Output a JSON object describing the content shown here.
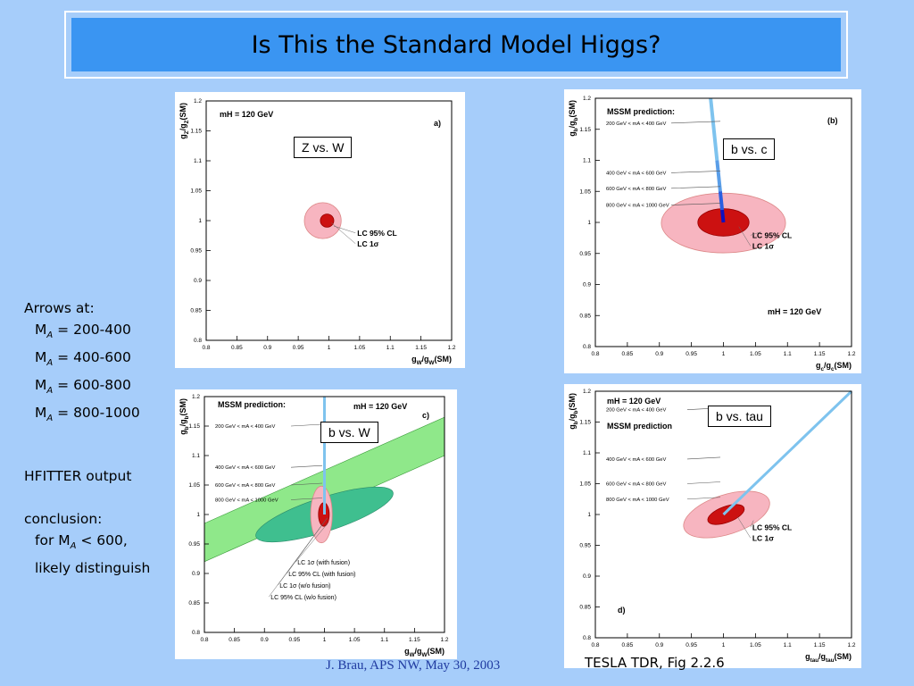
{
  "slide": {
    "title": "Is This the Standard Model Higgs?",
    "notes": {
      "arrows_header": "Arrows at:",
      "arrows": [
        "200-400",
        "400-600",
        "600-800",
        "800-1000"
      ],
      "arrow_prefix": "M",
      "arrow_sub": "A",
      "hfitter": "HFITTER output",
      "conclusion_label": "conclusion:",
      "conclusion_line1_pre": "for M",
      "conclusion_line1_sub": "A",
      "conclusion_line1_post": " < 600,",
      "conclusion_line2": "likely distinguish"
    },
    "footer_left": "J. Brau, APS NW, May 30, 2003",
    "footer_right": "TESLA TDR, Fig 2.2.6"
  },
  "chart_data": [
    {
      "id": "a",
      "type": "scatter",
      "callout": "Z vs. W",
      "panel_tag": "a)",
      "xlabel": "g_W/g_W(SM)",
      "ylabel": "g_Z/g_Z(SM)",
      "xlim": [
        0.8,
        1.2
      ],
      "ylim": [
        0.8,
        1.2
      ],
      "xticks": [
        "0.8",
        "0.85",
        "0.9",
        "0.95",
        "1",
        "1.05",
        "1.1",
        "1.15",
        "1.2"
      ],
      "yticks": [
        "0.8",
        "0.85",
        "0.9",
        "0.95",
        "1",
        "1.05",
        "1.1",
        "1.15",
        "1.2"
      ],
      "annotations": [
        {
          "text": "m_H = 120 GeV"
        }
      ],
      "ellipses": [
        {
          "name": "LC 95% CL",
          "cx": 0.99,
          "cy": 1.0,
          "rx": 0.03,
          "ry": 0.03,
          "color": "#f7b5c0"
        },
        {
          "name": "LC 1σ",
          "cx": 0.997,
          "cy": 1.0,
          "rx": 0.011,
          "ry": 0.011,
          "color": "#cc1111"
        }
      ],
      "legend_labels": [
        "LC 95% CL",
        "LC 1σ"
      ],
      "mssm_points": []
    },
    {
      "id": "b",
      "type": "scatter",
      "callout": "b vs. c",
      "panel_tag": "(b)",
      "xlabel": "g_c/g_c(SM)",
      "ylabel": "g_b/g_b(SM)",
      "xlim": [
        0.8,
        1.2
      ],
      "ylim": [
        0.8,
        1.2
      ],
      "xticks": [
        "0.8",
        "0.85",
        "0.9",
        "0.95",
        "1",
        "1.05",
        "1.1",
        "1.15",
        "1.2"
      ],
      "yticks": [
        "0.8",
        "0.85",
        "0.9",
        "0.95",
        "1",
        "1.05",
        "1.1",
        "1.15",
        "1.2"
      ],
      "annotations": [
        {
          "text": "MSSM prediction:"
        },
        {
          "text": "m_H = 120 GeV"
        }
      ],
      "ellipses": [
        {
          "name": "LC 95% CL",
          "cx": 1.0,
          "cy": 0.999,
          "rx": 0.097,
          "ry": 0.048,
          "color": "#f7b5c0"
        },
        {
          "name": "LC 1σ",
          "cx": 1.0,
          "cy": 1.0,
          "rx": 0.04,
          "ry": 0.022,
          "color": "#cc1111"
        }
      ],
      "legend_labels": [
        "LC 95% CL",
        "LC 1σ"
      ],
      "mssm_ranges": [
        {
          "label": "200 GeV < m_A < 400 GeV",
          "y_arrow": 1.16
        },
        {
          "label": "400 GeV < m_A < 600 GeV",
          "y_arrow": 1.08
        },
        {
          "label": "600 GeV < m_A < 800 GeV",
          "y_arrow": 1.055
        },
        {
          "label": "800 GeV < m_A < 1000 GeV",
          "y_arrow": 1.028
        }
      ],
      "mssm_line": [
        [
          0.98,
          1.2
        ],
        [
          0.99,
          1.1
        ],
        [
          0.995,
          1.05
        ],
        [
          0.998,
          1.02
        ],
        [
          1.0,
          1.0
        ]
      ]
    },
    {
      "id": "c",
      "type": "scatter",
      "callout": "b vs. W",
      "panel_tag": "c)",
      "xlabel": "g_W/g_W(SM)",
      "ylabel": "g_b/g_b(SM)",
      "xlim": [
        0.8,
        1.2
      ],
      "ylim": [
        0.8,
        1.2
      ],
      "xticks": [
        "0.8",
        "0.85",
        "0.9",
        "0.95",
        "1",
        "1.05",
        "1.1",
        "1.15",
        "1.2"
      ],
      "yticks": [
        "0.8",
        "0.85",
        "0.9",
        "0.95",
        "1",
        "1.05",
        "1.1",
        "1.15",
        "1.2"
      ],
      "annotations": [
        {
          "text": "MSSM prediction:"
        },
        {
          "text": "m_H = 120 GeV"
        }
      ],
      "bands": [
        {
          "name": "LC 95% CL (w/o fusion)",
          "color": "#8fe88a",
          "polygon": [
            [
              0.8,
              0.92
            ],
            [
              1.2,
              1.1
            ],
            [
              1.2,
              1.165
            ],
            [
              0.8,
              0.985
            ],
            [
              0.8,
              0.92
            ]
          ]
        },
        {
          "name": "LC 1σ (w/o fusion)",
          "color": "#3fbf8f",
          "ellipse": {
            "cx": 1.0,
            "cy": 1.0,
            "rx": 0.12,
            "ry": 0.018,
            "angle_deg": -18
          }
        }
      ],
      "ellipses": [
        {
          "name": "LC 95% CL (with fusion)",
          "cx": 0.995,
          "cy": 1.0,
          "rx": 0.018,
          "ry": 0.048,
          "color": "#f7b5c0"
        },
        {
          "name": "LC 1σ (with fusion)",
          "cx": 0.999,
          "cy": 1.0,
          "rx": 0.009,
          "ry": 0.02,
          "color": "#cc1111"
        }
      ],
      "legend_labels": [
        "LC 1σ (with fusion)",
        "LC 95% CL (with fusion)",
        "LC 1σ (w/o fusion)",
        "LC 95% CL (w/o fusion)"
      ],
      "mssm_ranges": [
        {
          "label": "200 GeV < m_A < 400 GeV",
          "y_arrow": 1.15
        },
        {
          "label": "400 GeV < m_A < 600 GeV",
          "y_arrow": 1.08
        },
        {
          "label": "600 GeV < m_A < 800 GeV",
          "y_arrow": 1.05
        },
        {
          "label": "800 GeV < m_A < 1000 GeV",
          "y_arrow": 1.025
        }
      ],
      "mssm_line": [
        [
          1.0,
          1.2
        ],
        [
          1.0,
          1.0
        ]
      ]
    },
    {
      "id": "d",
      "type": "scatter",
      "callout": "b vs. tau",
      "panel_tag": "d)",
      "xlabel": "g_tau/g_tau(SM)",
      "ylabel": "g_b/g_b(SM)",
      "xlim": [
        0.8,
        1.2
      ],
      "ylim": [
        0.8,
        1.2
      ],
      "xticks": [
        "0.8",
        "0.85",
        "0.9",
        "0.95",
        "1",
        "1.05",
        "1.1",
        "1.15",
        "1.2"
      ],
      "yticks": [
        "0.8",
        "0.85",
        "0.9",
        "0.95",
        "1",
        "1.05",
        "1.1",
        "1.15",
        "1.2"
      ],
      "annotations": [
        {
          "text": "m_H = 120 GeV"
        },
        {
          "text": "MSSM prediction"
        }
      ],
      "ellipses": [
        {
          "name": "LC 95% CL",
          "cx": 1.005,
          "cy": 1.0,
          "rx": 0.07,
          "ry": 0.032,
          "color": "#f7b5c0",
          "angle_deg": -18
        },
        {
          "name": "LC 1σ",
          "cx": 1.004,
          "cy": 1.0,
          "rx": 0.03,
          "ry": 0.013,
          "color": "#cc1111",
          "angle_deg": -20
        }
      ],
      "legend_labels": [
        "LC 95% CL",
        "LC 1σ"
      ],
      "mssm_ranges": [
        {
          "label": "200 GeV < m_A < 400 GeV",
          "y_arrow": 1.17
        },
        {
          "label": "400 GeV < m_A < 600 GeV",
          "y_arrow": 1.09
        },
        {
          "label": "600 GeV < m_A < 800 GeV",
          "y_arrow": 1.05
        },
        {
          "label": "800 GeV < m_A < 1000 GeV",
          "y_arrow": 1.025
        }
      ],
      "mssm_line": [
        [
          1.0,
          1.0
        ],
        [
          1.2,
          1.2
        ]
      ]
    }
  ]
}
